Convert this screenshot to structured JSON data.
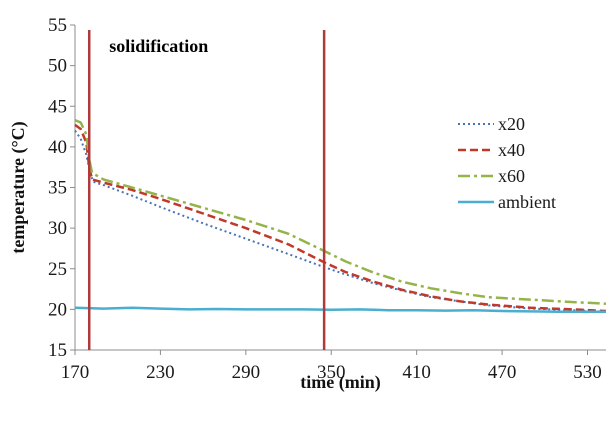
{
  "chart_data": {
    "type": "line",
    "xlabel": "time (min)",
    "ylabel": "temperature (°C)",
    "xlim": [
      170,
      543
    ],
    "ylim": [
      15,
      55
    ],
    "x_ticks": [
      170,
      230,
      290,
      350,
      410,
      470,
      530
    ],
    "y_ticks": [
      15,
      20,
      25,
      30,
      35,
      40,
      45,
      50,
      55
    ],
    "grid": false,
    "legend_position": "right",
    "annotation": {
      "text": "solidification",
      "x_from": 180,
      "x_to": 345,
      "color": "#b03a3a"
    },
    "series": [
      {
        "name": "x20",
        "color": "#4a72b8",
        "style": "dotted",
        "points": [
          [
            170,
            42
          ],
          [
            174,
            41
          ],
          [
            178,
            39
          ],
          [
            181,
            36.5
          ],
          [
            183,
            35.7
          ],
          [
            190,
            35.3
          ],
          [
            210,
            34
          ],
          [
            230,
            32.6
          ],
          [
            260,
            30.6
          ],
          [
            290,
            28.7
          ],
          [
            320,
            26.8
          ],
          [
            345,
            25.2
          ],
          [
            360,
            24.3
          ],
          [
            380,
            23.2
          ],
          [
            400,
            22.3
          ],
          [
            420,
            21.5
          ],
          [
            440,
            21
          ],
          [
            460,
            20.5
          ],
          [
            490,
            20.1
          ],
          [
            520,
            19.9
          ],
          [
            543,
            19.7
          ]
        ]
      },
      {
        "name": "x40",
        "color": "#c0392b",
        "style": "dashed",
        "points": [
          [
            170,
            42.7
          ],
          [
            174,
            42.2
          ],
          [
            178,
            40.5
          ],
          [
            180,
            37.5
          ],
          [
            182,
            36
          ],
          [
            190,
            35.6
          ],
          [
            210,
            34.7
          ],
          [
            230,
            33.6
          ],
          [
            260,
            31.8
          ],
          [
            290,
            30
          ],
          [
            320,
            28
          ],
          [
            345,
            25.8
          ],
          [
            360,
            24.6
          ],
          [
            380,
            23.4
          ],
          [
            400,
            22.4
          ],
          [
            420,
            21.6
          ],
          [
            440,
            21
          ],
          [
            460,
            20.6
          ],
          [
            490,
            20.2
          ],
          [
            520,
            20
          ],
          [
            543,
            19.8
          ]
        ]
      },
      {
        "name": "x60",
        "color": "#94b44a",
        "style": "dashdot",
        "points": [
          [
            170,
            43.3
          ],
          [
            174,
            43
          ],
          [
            178,
            41.5
          ],
          [
            180,
            38.5
          ],
          [
            182,
            36.8
          ],
          [
            190,
            36
          ],
          [
            210,
            35
          ],
          [
            230,
            34
          ],
          [
            260,
            32.5
          ],
          [
            290,
            31
          ],
          [
            320,
            29.3
          ],
          [
            345,
            27.2
          ],
          [
            360,
            25.9
          ],
          [
            380,
            24.5
          ],
          [
            400,
            23.4
          ],
          [
            420,
            22.6
          ],
          [
            440,
            22
          ],
          [
            460,
            21.5
          ],
          [
            490,
            21.2
          ],
          [
            520,
            20.9
          ],
          [
            543,
            20.7
          ]
        ]
      },
      {
        "name": "ambient",
        "color": "#4aaed0",
        "style": "solid",
        "points": [
          [
            170,
            20.2
          ],
          [
            190,
            20.1
          ],
          [
            210,
            20.2
          ],
          [
            230,
            20.1
          ],
          [
            250,
            20
          ],
          [
            270,
            20.05
          ],
          [
            290,
            20
          ],
          [
            310,
            20
          ],
          [
            330,
            20
          ],
          [
            350,
            19.95
          ],
          [
            370,
            20
          ],
          [
            390,
            19.9
          ],
          [
            410,
            19.9
          ],
          [
            430,
            19.85
          ],
          [
            450,
            19.9
          ],
          [
            470,
            19.8
          ],
          [
            490,
            19.75
          ],
          [
            510,
            19.7
          ],
          [
            530,
            19.7
          ],
          [
            543,
            19.7
          ]
        ]
      }
    ]
  }
}
